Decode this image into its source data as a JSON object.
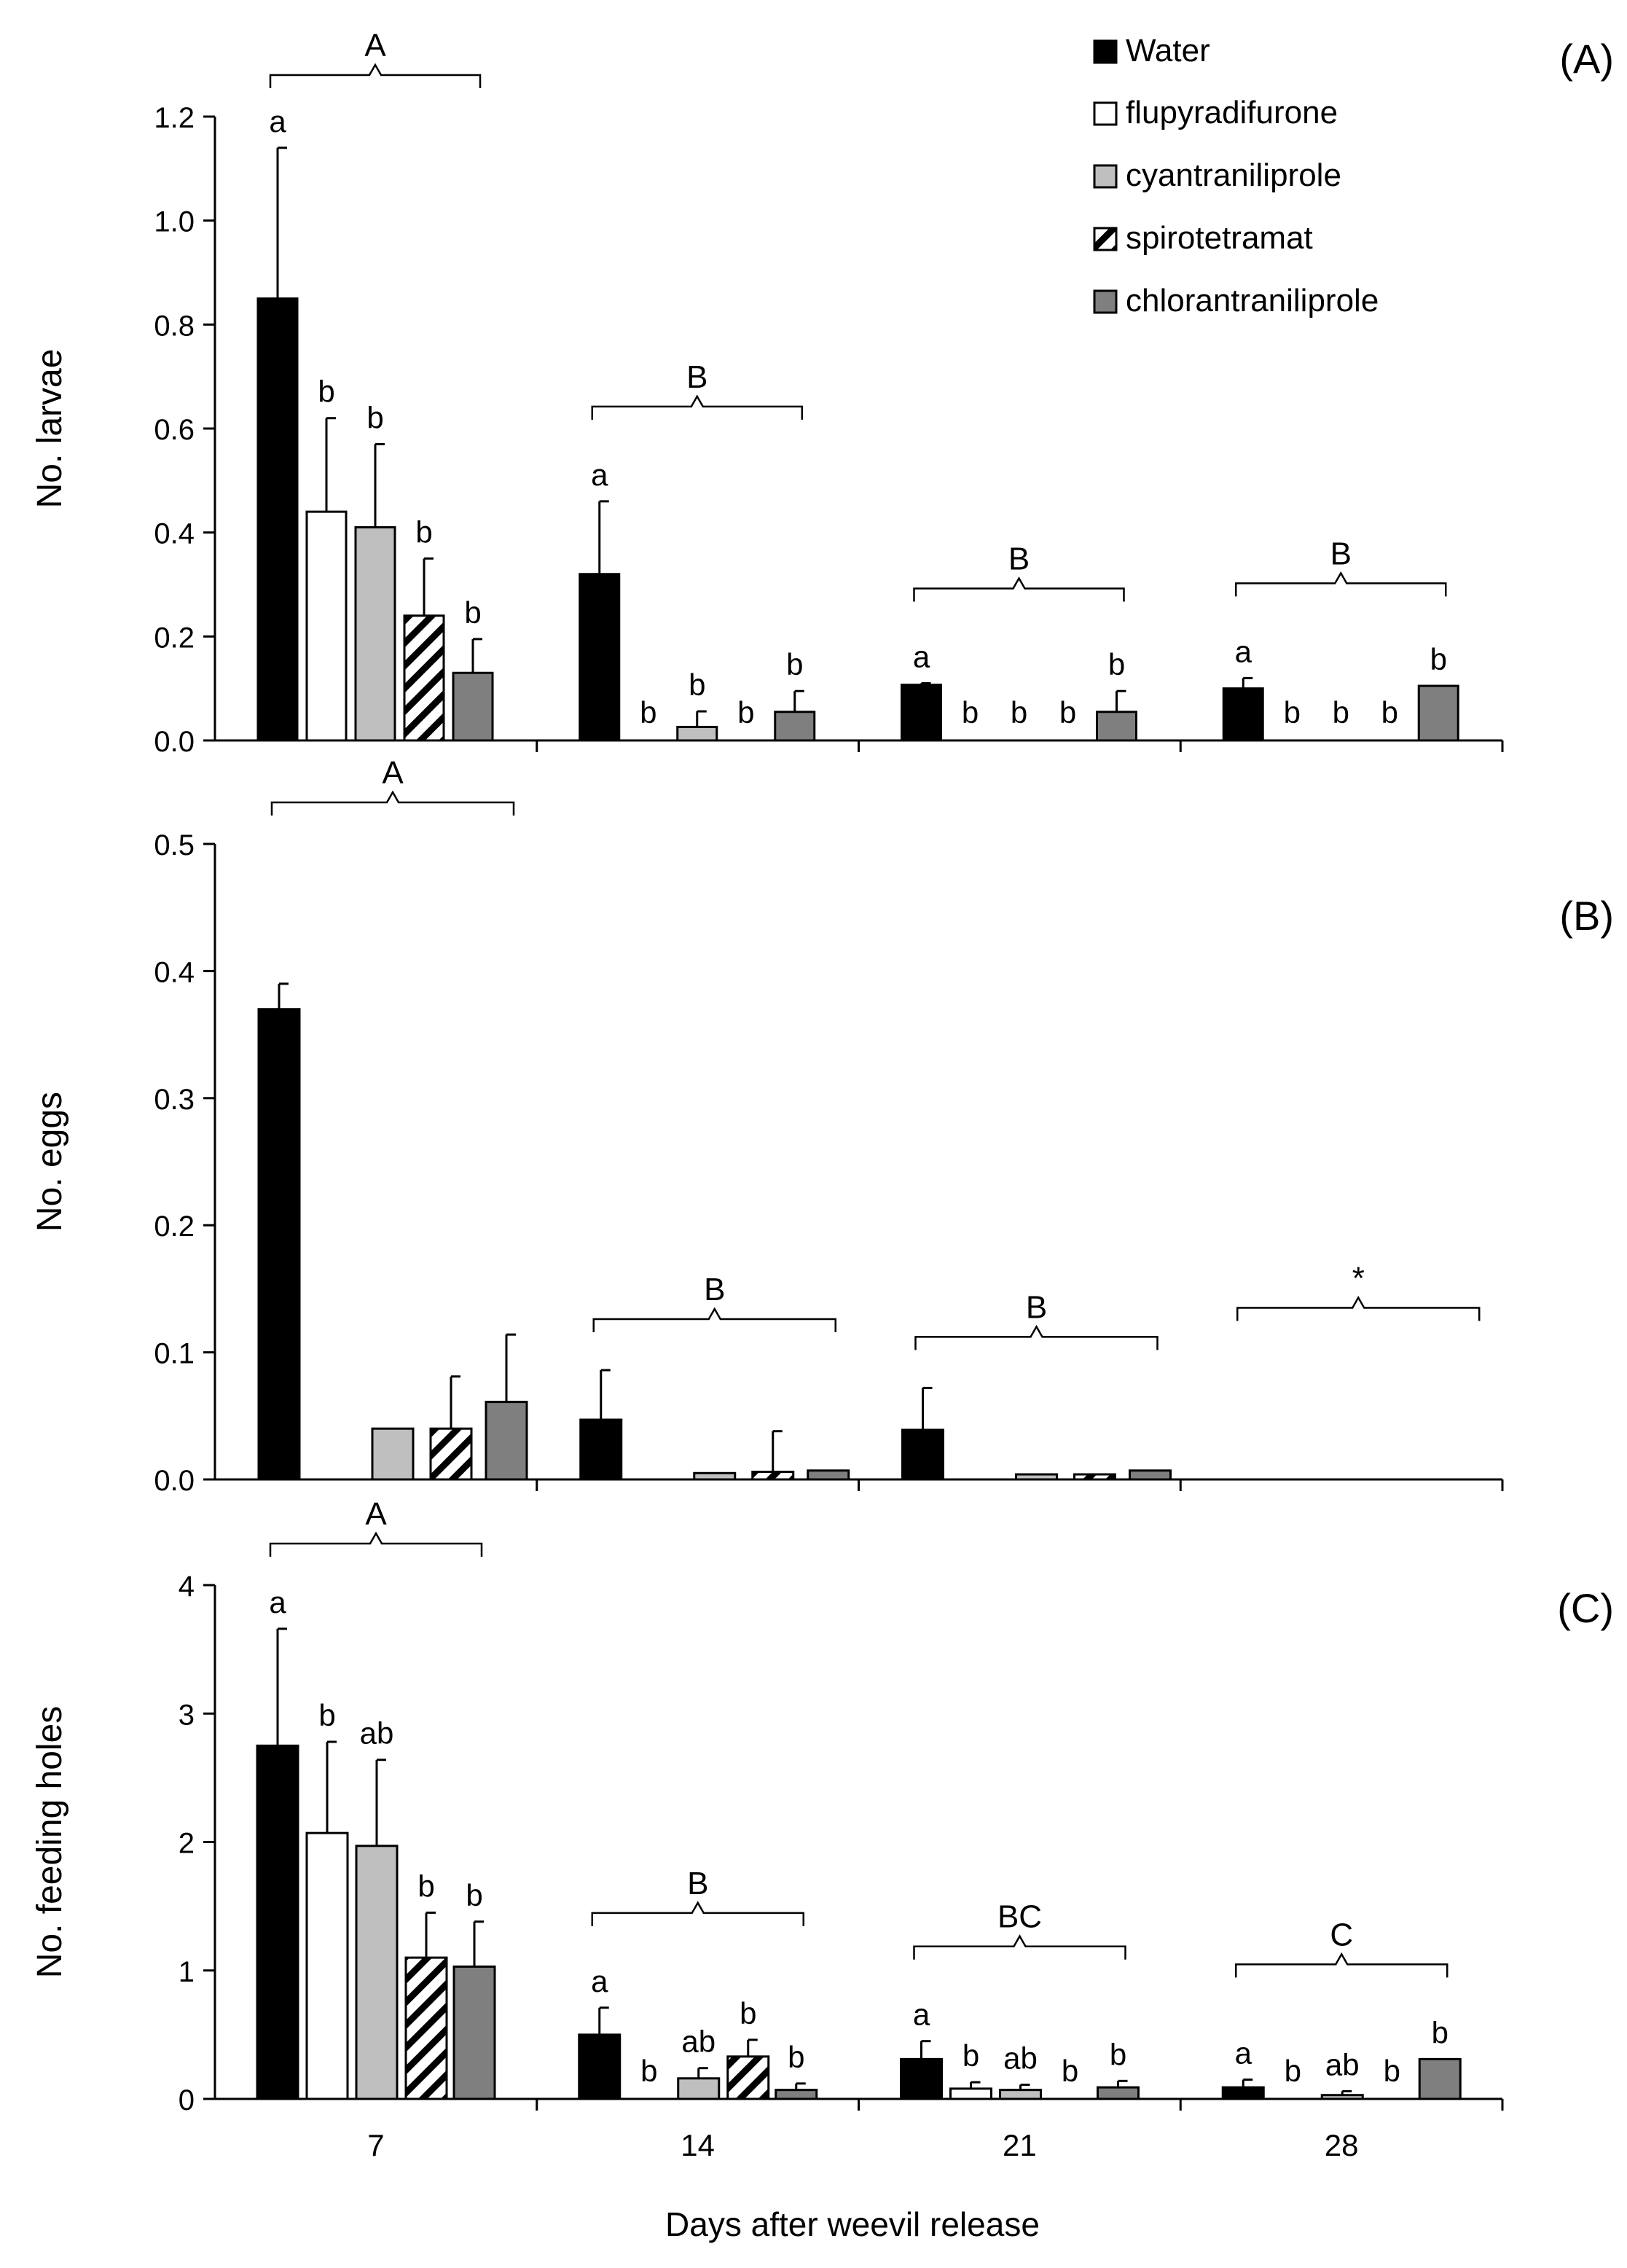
{
  "figure": {
    "xlabel": "Days after weevil release",
    "categories": [
      "7",
      "14",
      "21",
      "28"
    ],
    "legend": [
      {
        "label": "Water",
        "fill": "#000000",
        "pattern": "solid"
      },
      {
        "label": "flupyradifurone",
        "fill": "#ffffff",
        "pattern": "solid"
      },
      {
        "label": "cyantraniliprole",
        "fill": "#bfbfbf",
        "pattern": "solid"
      },
      {
        "label": "spirotetramat",
        "fill": "#ffffff",
        "pattern": "hatch"
      },
      {
        "label": "chlorantraniliprole",
        "fill": "#7f7f7f",
        "pattern": "solid"
      }
    ]
  },
  "chart_data": [
    {
      "type": "bar",
      "panel_label": "(A)",
      "ylabel": "No. larvae",
      "ylim": [
        0,
        1.2
      ],
      "yticks": [
        0,
        0.2,
        0.4,
        0.6,
        0.8,
        1.0,
        1.2
      ],
      "ytick_labels": [
        "0.0",
        "0.2",
        "0.4",
        "0.6",
        "0.8",
        "1.0",
        "1.2"
      ],
      "show_category_labels": false,
      "categories": [
        "7",
        "14",
        "21",
        "28"
      ],
      "series": [
        {
          "name": "Water",
          "values": [
            0.85,
            0.32,
            0.107,
            0.1
          ],
          "errors": [
            0.29,
            0.14,
            0.003,
            0.02
          ],
          "letters": [
            "a",
            "a",
            "a",
            "a"
          ]
        },
        {
          "name": "flupyradifurone",
          "values": [
            0.44,
            0,
            0,
            0
          ],
          "errors": [
            0.18,
            0,
            0,
            0
          ],
          "letters": [
            "b",
            "b",
            "b",
            "b"
          ]
        },
        {
          "name": "cyantraniliprole",
          "values": [
            0.41,
            0.026,
            0,
            0
          ],
          "errors": [
            0.16,
            0.03,
            0,
            0
          ],
          "letters": [
            "b",
            "b",
            "b",
            "b"
          ]
        },
        {
          "name": "spirotetramat",
          "values": [
            0.24,
            0,
            0,
            0
          ],
          "errors": [
            0.11,
            0,
            0,
            0
          ],
          "letters": [
            "b",
            "b",
            "b",
            "b"
          ]
        },
        {
          "name": "chlorantraniliprole",
          "values": [
            0.13,
            0.055,
            0.055,
            0.105
          ],
          "errors": [
            0.065,
            0.04,
            0.04,
            0
          ],
          "letters": [
            "b",
            "b",
            "b",
            "b"
          ]
        }
      ],
      "group_letters": [
        "A",
        "B",
        "B",
        "B"
      ]
    },
    {
      "type": "bar",
      "panel_label": "(B)",
      "ylabel": "No. eggs",
      "ylim": [
        0,
        0.5
      ],
      "yticks": [
        0,
        0.1,
        0.2,
        0.3,
        0.4,
        0.5
      ],
      "ytick_labels": [
        "0.0",
        "0.1",
        "0.2",
        "0.3",
        "0.4",
        "0.5"
      ],
      "show_category_labels": false,
      "categories": [
        "7",
        "14",
        "21",
        "28"
      ],
      "series": [
        {
          "name": "Water",
          "values": [
            0.37,
            0.047,
            0.039,
            0
          ],
          "errors": [
            0.02,
            0.039,
            0.033,
            0
          ]
        },
        {
          "name": "flupyradifurone",
          "values": [
            0,
            0,
            0,
            0
          ],
          "errors": [
            0,
            0,
            0,
            0
          ]
        },
        {
          "name": "cyantraniliprole",
          "values": [
            0.04,
            0.005,
            0.004,
            0
          ],
          "errors": [
            0,
            0,
            0,
            0
          ]
        },
        {
          "name": "spirotetramat",
          "values": [
            0.04,
            0.006,
            0.004,
            0
          ],
          "errors": [
            0.041,
            0.032,
            0,
            0
          ]
        },
        {
          "name": "chlorantraniliprole",
          "values": [
            0.061,
            0.007,
            0.007,
            0
          ],
          "errors": [
            0.053,
            0,
            0,
            0
          ]
        }
      ],
      "group_letters": [
        "A",
        "B",
        "B",
        "*"
      ]
    },
    {
      "type": "bar",
      "panel_label": "(C)",
      "ylabel": "No. feeding holes",
      "ylim": [
        0,
        4
      ],
      "yticks": [
        0,
        1,
        2,
        3,
        4
      ],
      "ytick_labels": [
        "0",
        "1",
        "2",
        "3",
        "4"
      ],
      "show_category_labels": true,
      "categories": [
        "7",
        "14",
        "21",
        "28"
      ],
      "series": [
        {
          "name": "Water",
          "values": [
            2.75,
            0.5,
            0.31,
            0.09
          ],
          "errors": [
            0.91,
            0.21,
            0.14,
            0.06
          ],
          "letters": [
            "a",
            "a",
            "a",
            "a"
          ]
        },
        {
          "name": "flupyradifurone",
          "values": [
            2.07,
            0,
            0.08,
            0
          ],
          "errors": [
            0.71,
            0,
            0.05,
            0
          ],
          "letters": [
            "b",
            "b",
            "b",
            "b"
          ]
        },
        {
          "name": "cyantraniliprole",
          "values": [
            1.97,
            0.16,
            0.07,
            0.03
          ],
          "errors": [
            0.67,
            0.08,
            0.04,
            0.03
          ],
          "letters": [
            "ab",
            "ab",
            "ab",
            "ab"
          ]
        },
        {
          "name": "spirotetramat",
          "values": [
            1.1,
            0.33,
            0,
            0
          ],
          "errors": [
            0.35,
            0.13,
            0,
            0
          ],
          "letters": [
            "b",
            "b",
            "b",
            "b"
          ]
        },
        {
          "name": "chlorantraniliprole",
          "values": [
            1.03,
            0.07,
            0.09,
            0.31
          ],
          "errors": [
            0.35,
            0.05,
            0.05,
            0
          ],
          "letters": [
            "b",
            "b",
            "b",
            "b"
          ]
        }
      ],
      "group_letters": [
        "A",
        "B",
        "BC",
        "C"
      ]
    }
  ]
}
